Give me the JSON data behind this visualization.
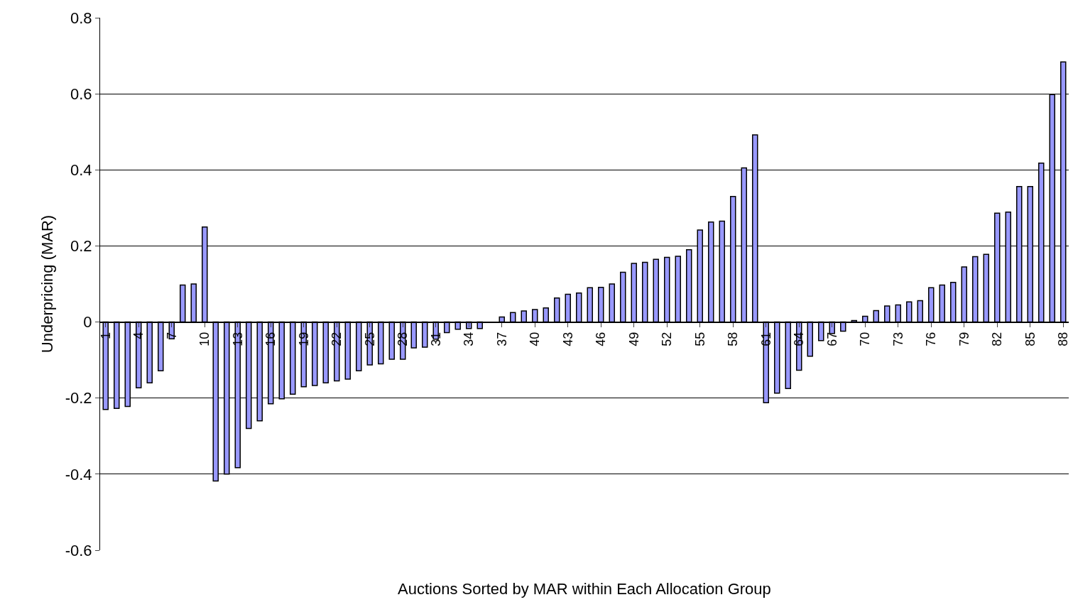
{
  "chart_data": {
    "type": "bar",
    "xlabel": "Auctions Sorted by MAR within Each Allocation Group",
    "ylabel": "Underpricing (MAR)",
    "categories": [
      "1",
      null,
      null,
      "4",
      null,
      null,
      "7",
      null,
      null,
      "10",
      null,
      null,
      "13",
      null,
      null,
      "16",
      null,
      null,
      "19",
      null,
      null,
      "22",
      null,
      null,
      "25",
      null,
      null,
      "28",
      null,
      null,
      "31",
      null,
      null,
      "34",
      null,
      null,
      "37",
      null,
      null,
      "40",
      null,
      null,
      "43",
      null,
      null,
      "46",
      null,
      null,
      "49",
      null,
      null,
      "52",
      null,
      null,
      "55",
      null,
      null,
      "58",
      null,
      null,
      "61",
      null,
      null,
      "64",
      null,
      null,
      "67",
      null,
      null,
      "70",
      null,
      null,
      "73",
      null,
      null,
      "76",
      null,
      null,
      "79",
      null,
      null,
      "82",
      null,
      null,
      "85",
      null,
      null,
      "88"
    ],
    "values": [
      -0.23,
      -0.227,
      -0.222,
      -0.173,
      -0.16,
      -0.128,
      -0.044,
      0.097,
      0.1,
      0.25,
      -0.418,
      -0.4,
      -0.383,
      -0.28,
      -0.26,
      -0.215,
      -0.202,
      -0.19,
      -0.17,
      -0.167,
      -0.16,
      -0.155,
      -0.15,
      -0.128,
      -0.113,
      -0.11,
      -0.098,
      -0.098,
      -0.068,
      -0.066,
      -0.045,
      -0.028,
      -0.019,
      -0.017,
      -0.017,
      0,
      0.013,
      0.025,
      0.029,
      0.033,
      0.037,
      0.063,
      0.073,
      0.076,
      0.09,
      0.091,
      0.1,
      0.131,
      0.154,
      0.157,
      0.165,
      0.17,
      0.173,
      0.19,
      0.242,
      0.263,
      0.265,
      0.33,
      0.405,
      0.492,
      -0.212,
      -0.187,
      -0.175,
      -0.127,
      -0.09,
      -0.049,
      -0.03,
      -0.024,
      0.004,
      0.015,
      0.03,
      0.042,
      0.045,
      0.053,
      0.056,
      0.09,
      0.097,
      0.104,
      0.145,
      0.172,
      0.178,
      0.286,
      0.289,
      0.356,
      0.356,
      0.418,
      0.598,
      0.684
    ],
    "color": "#9999ff",
    "ylim": [
      -0.6,
      0.8
    ],
    "yticks": [
      -0.6,
      -0.4,
      -0.2,
      0,
      0.2,
      0.4,
      0.6,
      0.8
    ],
    "grid": "y"
  }
}
